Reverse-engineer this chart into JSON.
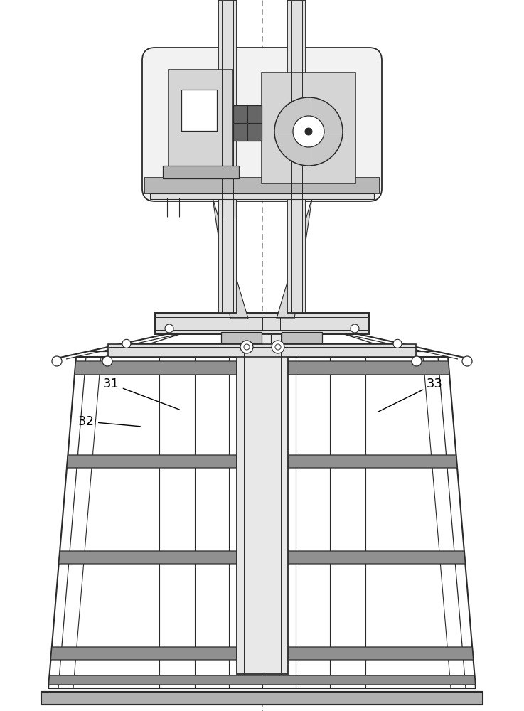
{
  "bg_color": "#ffffff",
  "line_color": "#2a2a2a",
  "mid_gray": "#aaaaaa",
  "light_gray": "#e0e0e0",
  "dark_gray": "#666666",
  "label_31": "31",
  "label_32": "32",
  "label_33": "33",
  "label_fontsize": 13,
  "fig_width": 7.37,
  "fig_height": 10.0,
  "dpi": 100
}
